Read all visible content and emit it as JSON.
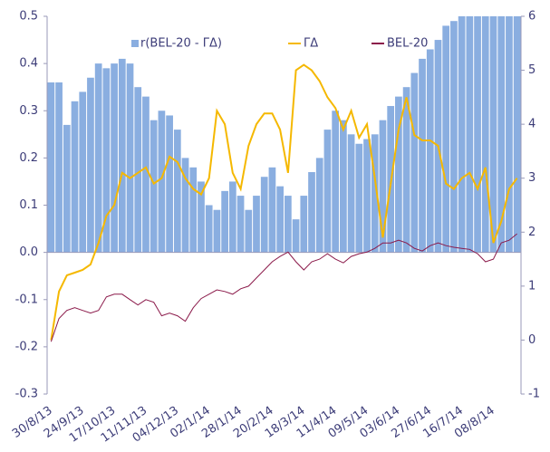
{
  "chart_data": {
    "type": "bar_line",
    "categories": [
      "30/8/13",
      null,
      null,
      null,
      "24/9/13",
      null,
      null,
      null,
      "17/10/13",
      null,
      null,
      null,
      "11/11/13",
      null,
      null,
      null,
      "04/12/13",
      null,
      null,
      null,
      "02/1/14",
      null,
      null,
      null,
      "28/1/14",
      null,
      null,
      null,
      "20/2/14",
      null,
      null,
      null,
      "18/3/14",
      null,
      null,
      null,
      "11/4/14",
      null,
      null,
      null,
      "09/5/14",
      null,
      null,
      null,
      "03/6/14",
      null,
      null,
      null,
      "27/6/14",
      null,
      null,
      null,
      "16/7/14",
      null,
      null,
      null,
      "08/8/14",
      null,
      null,
      null
    ],
    "series": [
      {
        "name": "r(BEL-20 - ΓΔ)",
        "color": "#8aaee0",
        "kind": "bar",
        "axis": "y",
        "values": [
          0.36,
          0.36,
          0.27,
          0.32,
          0.34,
          0.37,
          0.4,
          0.39,
          0.4,
          0.41,
          0.4,
          0.35,
          0.33,
          0.28,
          0.3,
          0.29,
          0.26,
          0.2,
          0.18,
          0.15,
          0.1,
          0.09,
          0.13,
          0.15,
          0.12,
          0.09,
          0.12,
          0.16,
          0.18,
          0.14,
          0.12,
          0.07,
          0.12,
          0.17,
          0.2,
          0.26,
          0.3,
          0.28,
          0.25,
          0.23,
          0.24,
          0.25,
          0.28,
          0.31,
          0.33,
          0.35,
          0.38,
          0.41,
          0.43,
          0.45,
          0.48,
          0.49,
          0.5,
          0.5,
          0.5,
          0.5,
          0.5,
          0.5,
          0.5,
          0.5
        ]
      },
      {
        "name": "ΓΔ",
        "color": "#f5b800",
        "kind": "line",
        "axis": "y2",
        "values": [
          0.0,
          0.9,
          1.2,
          1.25,
          1.3,
          1.4,
          1.8,
          2.3,
          2.5,
          3.1,
          3.0,
          3.1,
          3.2,
          2.9,
          3.0,
          3.4,
          3.3,
          3.0,
          2.8,
          2.7,
          3.0,
          4.25,
          4.0,
          3.1,
          2.8,
          3.6,
          4.0,
          4.2,
          4.2,
          3.9,
          3.1,
          5.0,
          5.1,
          5.0,
          4.8,
          4.5,
          4.3,
          3.9,
          4.25,
          3.75,
          4.0,
          3.0,
          1.9,
          2.9,
          3.9,
          4.5,
          3.8,
          3.7,
          3.7,
          3.6,
          2.9,
          2.8,
          3.0,
          3.1,
          2.8,
          3.2,
          1.8,
          2.2,
          2.8,
          3.0
        ]
      },
      {
        "name": "BEL-20",
        "color": "#8b1a4a",
        "kind": "line",
        "axis": "y2",
        "values": [
          -0.03,
          0.4,
          0.55,
          0.6,
          0.55,
          0.5,
          0.55,
          0.8,
          0.85,
          0.85,
          0.75,
          0.65,
          0.75,
          0.7,
          0.45,
          0.5,
          0.45,
          0.35,
          0.6,
          0.77,
          0.85,
          0.93,
          0.9,
          0.85,
          0.95,
          1.0,
          1.15,
          1.3,
          1.45,
          1.55,
          1.63,
          1.45,
          1.3,
          1.45,
          1.5,
          1.6,
          1.5,
          1.43,
          1.55,
          1.6,
          1.63,
          1.7,
          1.8,
          1.8,
          1.85,
          1.8,
          1.7,
          1.65,
          1.75,
          1.8,
          1.75,
          1.72,
          1.7,
          1.68,
          1.6,
          1.45,
          1.5,
          1.8,
          1.85,
          1.97
        ]
      }
    ],
    "ylim": [
      -0.3,
      0.5
    ],
    "yticks": [
      0.5,
      0.4,
      0.3,
      0.2,
      0.1,
      {
        "value": 0,
        "label": "0.0"
      },
      -0.1,
      -0.2,
      -0.3
    ],
    "y2lim": [
      -1,
      6
    ],
    "y2ticks": [
      6,
      5,
      4,
      3,
      2,
      1,
      0,
      -1
    ],
    "legend": "top"
  }
}
